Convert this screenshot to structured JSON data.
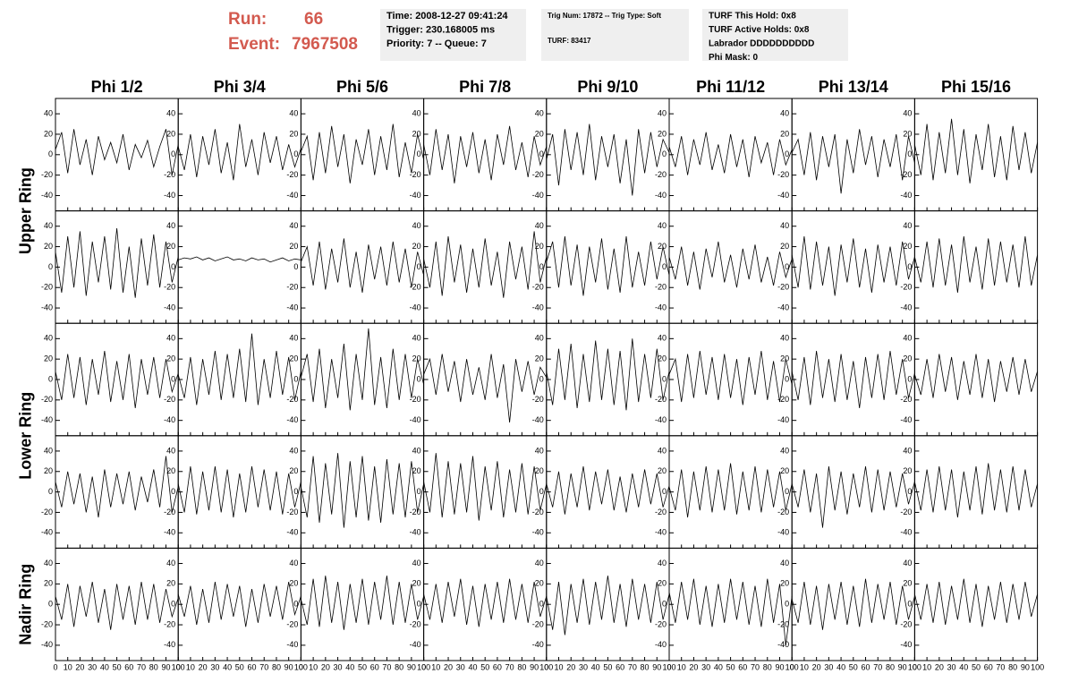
{
  "header": {
    "run_label": "Run:",
    "run": "66",
    "event_label": "Event:",
    "event": "7967508"
  },
  "info": [
    [
      "Time: 2008-12-27 09:41:24",
      "Trigger: 230.168005 ms",
      "Priority: 7 -- Queue: 7"
    ],
    [
      "Trig Num: 17872 -- Trig Type: Soft",
      "TURF: 83417"
    ],
    [
      "TURF This Hold: 0x8",
      "TURF Active Holds: 0x8",
      "Labrador DDDDDDDDDD",
      "Phi Mask: 0"
    ]
  ],
  "chart_data": {
    "type": "line",
    "color": "#000000",
    "columns": [
      "Phi 1/2",
      "Phi 3/4",
      "Phi 5/6",
      "Phi 7/8",
      "Phi 9/10",
      "Phi 11/12",
      "Phi 13/14",
      "Phi 15/16"
    ],
    "rows": [
      "Upper Ring",
      "Lower Ring",
      "Nadir Ring"
    ],
    "xlim": [
      0,
      100
    ],
    "xticks": [
      0,
      10,
      20,
      30,
      40,
      50,
      60,
      70,
      80,
      90,
      100
    ],
    "ylim": [
      -55,
      55
    ],
    "yticks": [
      -40,
      -20,
      0,
      20,
      40
    ],
    "x": [
      0,
      5,
      10,
      15,
      20,
      25,
      30,
      35,
      40,
      45,
      50,
      55,
      60,
      65,
      70,
      75,
      80,
      85,
      90,
      95,
      100
    ],
    "series": [
      {
        "values": [
          5,
          22,
          -18,
          25,
          -10,
          15,
          -20,
          18,
          -5,
          12,
          -8,
          20,
          -15,
          10,
          -3,
          14,
          -12,
          8,
          25,
          -20,
          10
        ]
      },
      {
        "values": [
          8,
          -15,
          20,
          -22,
          18,
          -10,
          25,
          -18,
          12,
          -25,
          30,
          -12,
          15,
          -20,
          22,
          -8,
          18,
          -15,
          10,
          -12,
          6
        ]
      },
      {
        "values": [
          3,
          18,
          -25,
          22,
          -18,
          28,
          -12,
          20,
          -28,
          15,
          -10,
          25,
          -20,
          18,
          -15,
          30,
          -22,
          12,
          -18,
          20,
          -5
        ]
      },
      {
        "values": [
          10,
          -20,
          25,
          -15,
          20,
          -28,
          18,
          -12,
          22,
          -18,
          15,
          -25,
          20,
          -10,
          28,
          -15,
          12,
          -22,
          18,
          -10,
          8
        ]
      },
      {
        "values": [
          -5,
          20,
          -30,
          25,
          -15,
          22,
          -20,
          30,
          -25,
          18,
          -12,
          20,
          -28,
          15,
          -40,
          25,
          -18,
          22,
          -12,
          15,
          2
        ]
      },
      {
        "values": [
          8,
          -12,
          18,
          -20,
          15,
          -10,
          22,
          -15,
          10,
          -18,
          20,
          -12,
          15,
          -22,
          18,
          -8,
          12,
          -20,
          15,
          -10,
          5
        ]
      },
      {
        "values": [
          2,
          15,
          -20,
          22,
          -25,
          18,
          -12,
          20,
          -38,
          15,
          -18,
          25,
          -10,
          18,
          -22,
          15,
          -12,
          20,
          -25,
          18,
          -8
        ]
      },
      {
        "values": [
          10,
          -20,
          30,
          -25,
          22,
          -18,
          35,
          -20,
          25,
          -28,
          20,
          -15,
          30,
          -22,
          18,
          -25,
          28,
          -15,
          22,
          -18,
          12
        ]
      },
      {
        "values": [
          15,
          -25,
          30,
          -20,
          35,
          -28,
          25,
          -15,
          30,
          -22,
          38,
          -25,
          20,
          -30,
          28,
          -18,
          32,
          -20,
          25,
          -15,
          10
        ]
      },
      {
        "values": [
          7,
          9,
          8,
          10,
          7,
          9,
          6,
          8,
          10,
          7,
          8,
          6,
          9,
          7,
          8,
          5,
          7,
          9,
          6,
          8,
          7
        ]
      },
      {
        "values": [
          5,
          20,
          -18,
          25,
          -22,
          18,
          -15,
          28,
          -20,
          15,
          -25,
          22,
          -12,
          20,
          -18,
          25,
          -15,
          18,
          -20,
          15,
          -8
        ]
      },
      {
        "values": [
          8,
          -20,
          25,
          -28,
          30,
          -15,
          22,
          -25,
          18,
          -20,
          28,
          -18,
          15,
          -30,
          25,
          -12,
          20,
          -22,
          35,
          -15,
          10
        ]
      },
      {
        "values": [
          5,
          25,
          -20,
          30,
          -18,
          22,
          -28,
          20,
          -15,
          28,
          -22,
          18,
          -25,
          30,
          -20,
          15,
          -18,
          25,
          -12,
          20,
          -8
        ]
      },
      {
        "values": [
          10,
          -12,
          20,
          -18,
          15,
          -22,
          18,
          -10,
          25,
          -15,
          12,
          -20,
          18,
          -12,
          22,
          -15,
          10,
          -18,
          15,
          -10,
          8
        ]
      },
      {
        "values": [
          12,
          -20,
          30,
          -22,
          25,
          -18,
          20,
          -28,
          22,
          -15,
          28,
          -20,
          18,
          -25,
          22,
          -15,
          20,
          -18,
          25,
          -12,
          10
        ]
      },
      {
        "values": [
          10,
          -15,
          25,
          -20,
          28,
          -18,
          22,
          -25,
          30,
          -15,
          20,
          -22,
          28,
          -18,
          25,
          -15,
          22,
          -20,
          30,
          -18,
          12
        ]
      },
      {
        "values": [
          8,
          -20,
          25,
          -18,
          22,
          -25,
          20,
          -15,
          28,
          -22,
          18,
          -20,
          25,
          -28,
          20,
          -15,
          22,
          -18,
          20,
          -12,
          6
        ]
      },
      {
        "values": [
          5,
          -18,
          22,
          -25,
          20,
          -15,
          28,
          -20,
          25,
          -18,
          30,
          -22,
          45,
          -25,
          20,
          -18,
          28,
          -15,
          22,
          -20,
          8
        ]
      },
      {
        "values": [
          2,
          25,
          -22,
          30,
          -28,
          20,
          -18,
          35,
          -30,
          25,
          -20,
          50,
          -25,
          22,
          -28,
          30,
          -20,
          25,
          -18,
          20,
          -5
        ]
      },
      {
        "values": [
          5,
          20,
          -15,
          25,
          -12,
          18,
          -22,
          20,
          -15,
          12,
          -20,
          25,
          -18,
          15,
          -42,
          20,
          -12,
          18,
          -15,
          12,
          2
        ]
      },
      {
        "values": [
          8,
          -25,
          30,
          -20,
          35,
          -28,
          25,
          -22,
          38,
          -20,
          30,
          -25,
          28,
          -30,
          40,
          -22,
          25,
          -18,
          30,
          -20,
          8
        ]
      },
      {
        "values": [
          5,
          20,
          -22,
          25,
          -18,
          28,
          -15,
          22,
          -20,
          25,
          -18,
          20,
          -25,
          22,
          -15,
          28,
          -20,
          18,
          -22,
          20,
          -5
        ]
      },
      {
        "values": [
          8,
          -20,
          22,
          -25,
          28,
          -18,
          20,
          -22,
          25,
          -20,
          18,
          -28,
          22,
          -18,
          25,
          -20,
          28,
          -15,
          20,
          -18,
          6
        ]
      },
      {
        "values": [
          5,
          -15,
          20,
          -18,
          25,
          -12,
          22,
          -20,
          18,
          -15,
          25,
          -18,
          20,
          -22,
          18,
          -12,
          22,
          -15,
          20,
          -12,
          8
        ]
      },
      {
        "values": [
          10,
          -15,
          20,
          -12,
          18,
          -20,
          15,
          -25,
          22,
          -15,
          18,
          -12,
          20,
          -18,
          15,
          -10,
          22,
          -15,
          35,
          -20,
          5
        ]
      },
      {
        "values": [
          8,
          -20,
          25,
          -22,
          20,
          -18,
          25,
          -20,
          22,
          -25,
          18,
          -20,
          25,
          -15,
          22,
          -18,
          20,
          -22,
          18,
          -15,
          10
        ]
      },
      {
        "values": [
          5,
          -25,
          35,
          -30,
          28,
          -22,
          38,
          -35,
          30,
          -25,
          35,
          -28,
          25,
          -30,
          32,
          -22,
          28,
          -25,
          30,
          -20,
          8
        ]
      },
      {
        "values": [
          10,
          -20,
          38,
          -25,
          30,
          -22,
          28,
          -20,
          35,
          -28,
          25,
          -18,
          30,
          -25,
          22,
          -20,
          28,
          -22,
          25,
          -18,
          8
        ]
      },
      {
        "values": [
          8,
          -15,
          20,
          -22,
          18,
          -15,
          25,
          -18,
          20,
          -12,
          22,
          -18,
          15,
          -20,
          18,
          -15,
          22,
          -12,
          18,
          -15,
          6
        ]
      },
      {
        "values": [
          5,
          -18,
          22,
          -25,
          20,
          -18,
          25,
          -20,
          22,
          -18,
          28,
          -22,
          20,
          -18,
          25,
          -20,
          22,
          -15,
          20,
          -18,
          8
        ]
      },
      {
        "values": [
          8,
          -15,
          22,
          -20,
          18,
          -35,
          25,
          -18,
          20,
          -22,
          18,
          -15,
          25,
          -20,
          22,
          -18,
          20,
          -15,
          18,
          -12,
          10
        ]
      },
      {
        "values": [
          10,
          -18,
          22,
          -20,
          25,
          -18,
          22,
          -25,
          20,
          -18,
          25,
          -22,
          28,
          -18,
          22,
          -20,
          25,
          -18,
          22,
          -15,
          8
        ]
      },
      {
        "values": [
          8,
          -15,
          20,
          -22,
          18,
          -12,
          22,
          -18,
          15,
          -25,
          20,
          -15,
          18,
          -20,
          22,
          -15,
          20,
          -18,
          15,
          -12,
          6
        ]
      },
      {
        "values": [
          10,
          -12,
          18,
          -20,
          15,
          -18,
          22,
          -15,
          20,
          -12,
          18,
          -22,
          15,
          -18,
          20,
          -12,
          18,
          -15,
          22,
          -10,
          8
        ]
      },
      {
        "values": [
          5,
          -20,
          25,
          -22,
          28,
          -18,
          22,
          -25,
          20,
          -18,
          25,
          -20,
          22,
          -15,
          28,
          -20,
          22,
          -18,
          20,
          -15,
          8
        ]
      },
      {
        "values": [
          10,
          -15,
          20,
          -18,
          22,
          -12,
          25,
          -20,
          18,
          -22,
          20,
          -15,
          22,
          -18,
          25,
          -15,
          20,
          -18,
          22,
          -12,
          8
        ]
      },
      {
        "values": [
          8,
          -25,
          22,
          -30,
          20,
          -18,
          25,
          -20,
          22,
          -15,
          28,
          -18,
          20,
          -22,
          25,
          -15,
          20,
          -18,
          22,
          -15,
          10
        ]
      },
      {
        "values": [
          12,
          -18,
          22,
          -15,
          25,
          -20,
          18,
          -22,
          20,
          -18,
          25,
          -15,
          22,
          -20,
          18,
          -22,
          25,
          -18,
          20,
          -40,
          8
        ]
      },
      {
        "values": [
          5,
          -18,
          22,
          -20,
          18,
          -25,
          20,
          -15,
          22,
          -20,
          18,
          -22,
          25,
          -18,
          20,
          -15,
          22,
          -20,
          18,
          -15,
          8
        ]
      },
      {
        "values": [
          10,
          -15,
          20,
          -18,
          22,
          -20,
          18,
          -15,
          25,
          -18,
          20,
          -22,
          18,
          -15,
          22,
          -18,
          20,
          -15,
          22,
          -12,
          10
        ]
      }
    ]
  }
}
